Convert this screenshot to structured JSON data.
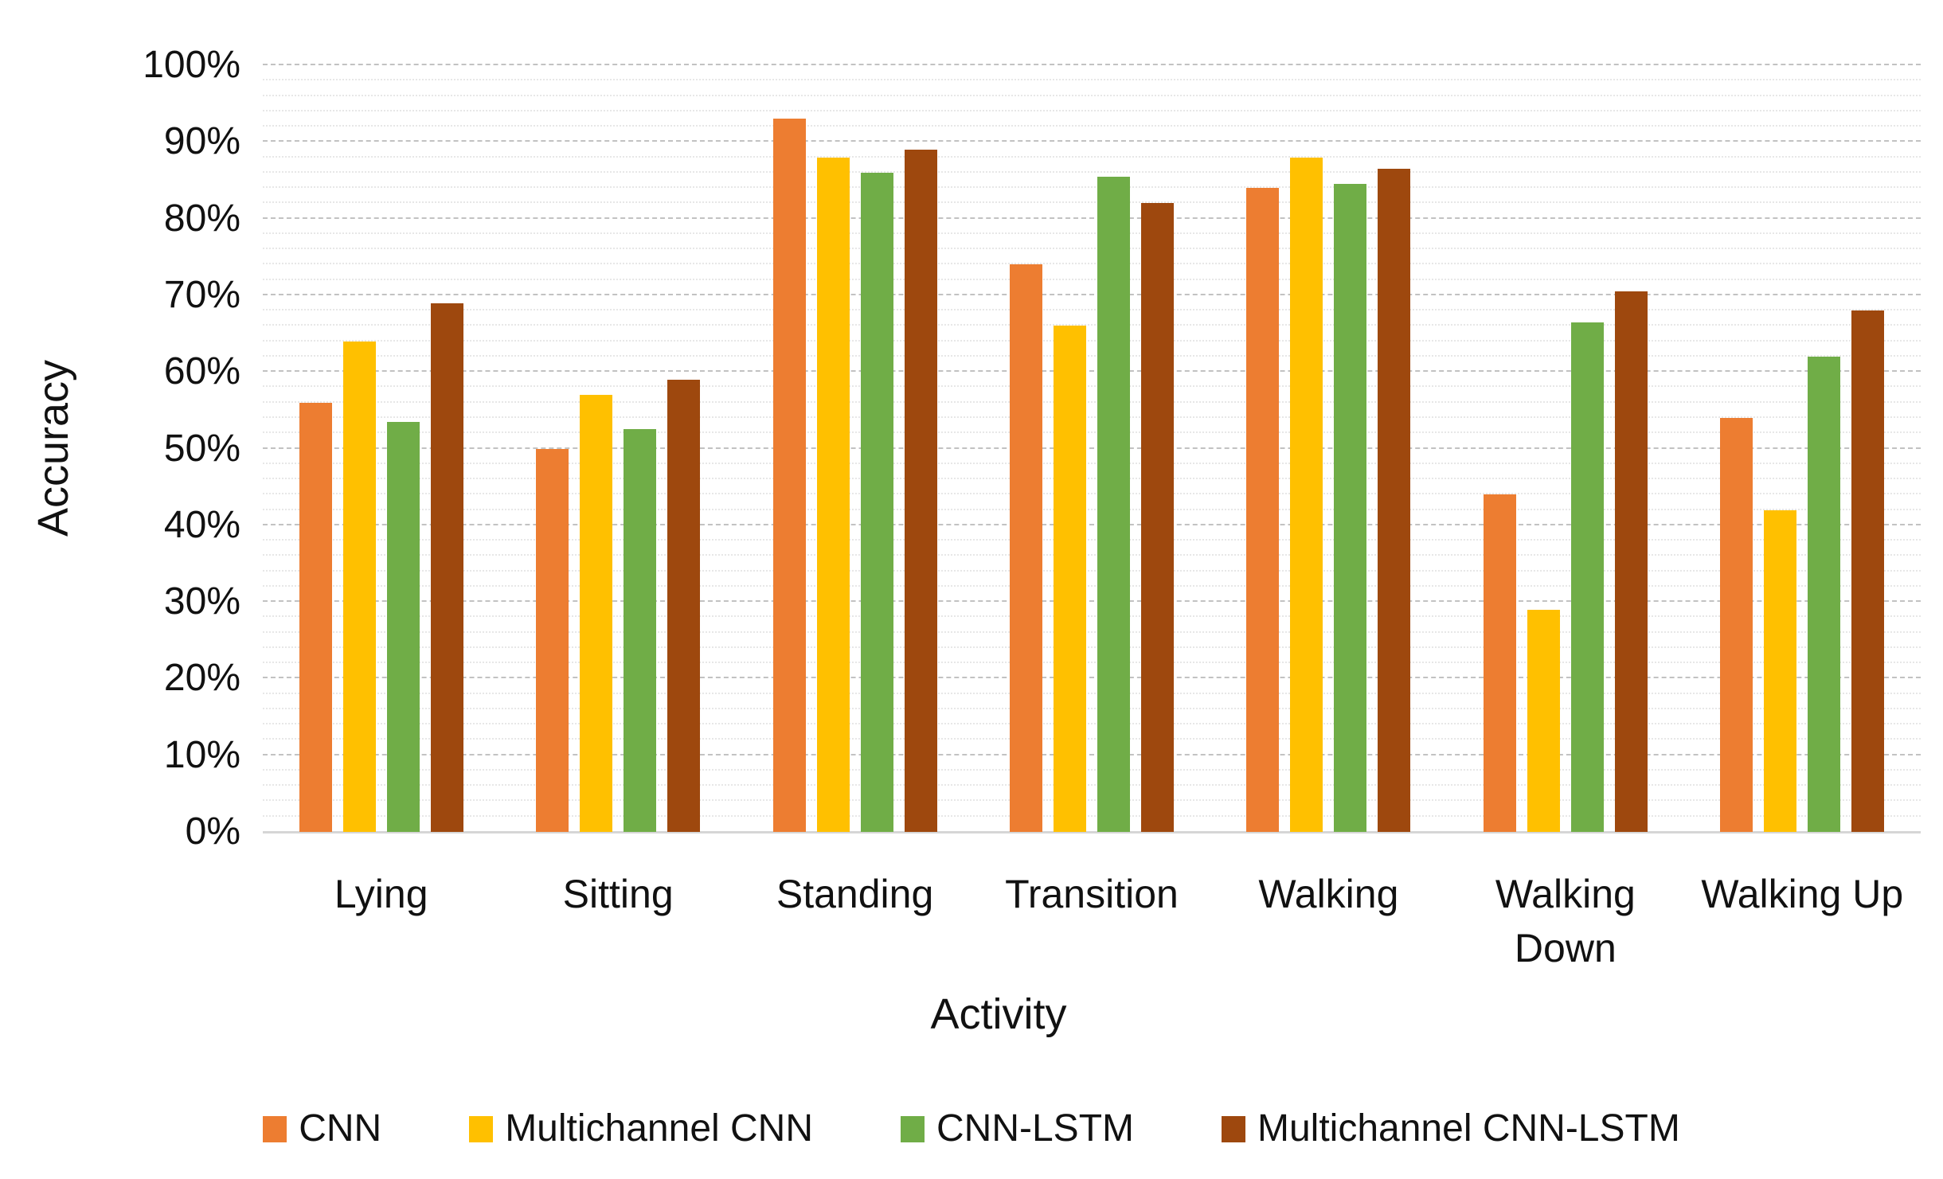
{
  "chart_data": {
    "type": "bar",
    "title": "",
    "xlabel": "Activity",
    "ylabel": "Accuracy",
    "categories": [
      "Lying",
      "Sitting",
      "Standing",
      "Transition",
      "Walking",
      "Walking\nDown",
      "Walking Up"
    ],
    "series": [
      {
        "name": "CNN",
        "color": "#ED7D31",
        "values": [
          56,
          50,
          93,
          74,
          84,
          44,
          54
        ]
      },
      {
        "name": "Multichannel CNN",
        "color": "#FFC000",
        "values": [
          64,
          57,
          88,
          66,
          88,
          29,
          42
        ]
      },
      {
        "name": "CNN-LSTM",
        "color": "#70AD47",
        "values": [
          53.5,
          52.5,
          86,
          85.5,
          84.5,
          66.5,
          62
        ]
      },
      {
        "name": "Multichannel CNN-LSTM",
        "color": "#9E480E",
        "values": [
          69,
          59,
          89,
          82,
          86.5,
          70.5,
          68
        ]
      }
    ],
    "ylim": [
      0,
      100
    ],
    "y_tick_labels": [
      "0%",
      "10%",
      "20%",
      "30%",
      "40%",
      "50%",
      "60%",
      "70%",
      "80%",
      "90%",
      "100%"
    ],
    "y_major_step": 10,
    "y_minor_step": 2,
    "grid": true,
    "legend_position": "bottom"
  },
  "style_colors": {
    "major_grid": "#C2C2C2",
    "minor_grid": "#E7E7E7",
    "axis_line": "#D6D6D6",
    "text": "#111111",
    "background": "#FFFFFF"
  }
}
